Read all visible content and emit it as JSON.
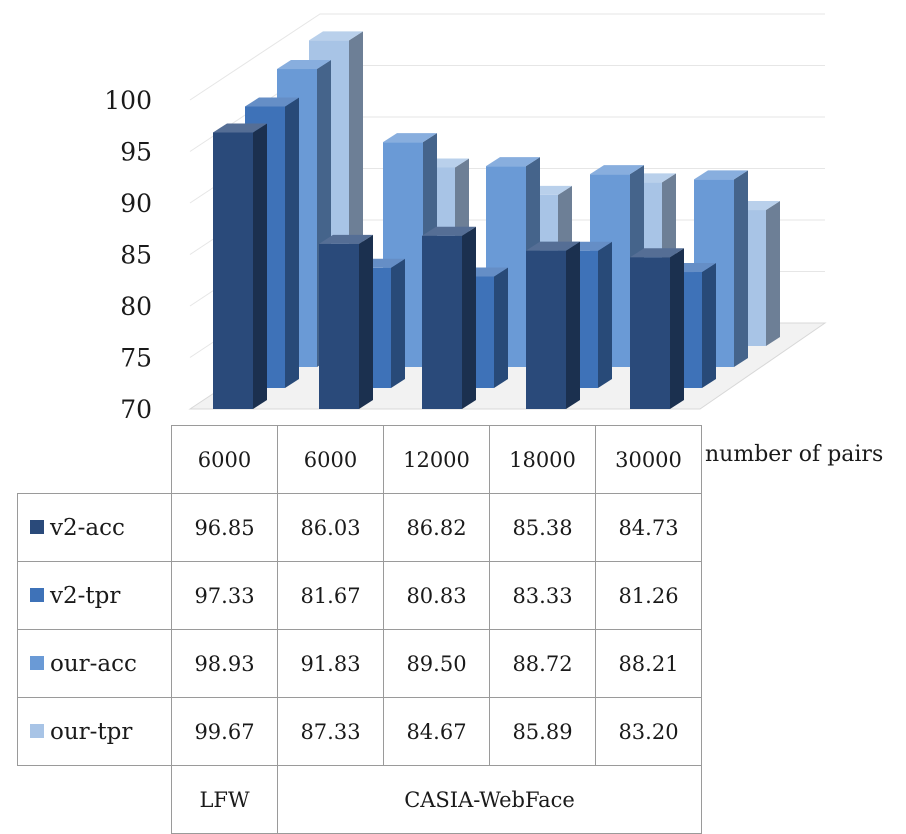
{
  "chart_data": {
    "type": "bar",
    "subtype": "3d-clustered-column-with-data-table",
    "categories": [
      "6000",
      "6000",
      "12000",
      "18000",
      "30000"
    ],
    "groups": [
      {
        "label": "LFW",
        "span": 1
      },
      {
        "label": "CASIA-WebFace",
        "span": 4
      }
    ],
    "xlabel": "number of pairs",
    "ylabel": "",
    "ylim": [
      70,
      100
    ],
    "yticks": [
      70,
      75,
      80,
      85,
      90,
      95,
      100
    ],
    "grid": true,
    "legend": "left-of-data-table",
    "series": [
      {
        "name": "v2-acc",
        "color": "#2a4a7a",
        "values": [
          96.85,
          86.03,
          86.82,
          85.38,
          84.73
        ],
        "labels": [
          "96.85",
          "86.03",
          "86.82",
          "85.38",
          "84.73"
        ]
      },
      {
        "name": "v2-tpr",
        "color": "#3e72b8",
        "values": [
          97.33,
          81.67,
          80.83,
          83.33,
          81.26
        ],
        "labels": [
          "97.33",
          "81.67",
          "80.83",
          "83.33",
          "81.26"
        ]
      },
      {
        "name": "our-acc",
        "color": "#6a9ad6",
        "values": [
          98.93,
          91.83,
          89.5,
          88.72,
          88.21
        ],
        "labels": [
          "98.93",
          "91.83",
          "89.50",
          "88.72",
          "88.21"
        ]
      },
      {
        "name": "our-tpr",
        "color": "#a8c4e6",
        "values": [
          99.67,
          87.33,
          84.67,
          85.89,
          83.2
        ],
        "labels": [
          "99.67",
          "87.33",
          "84.67",
          "85.89",
          "83.20"
        ]
      }
    ]
  }
}
